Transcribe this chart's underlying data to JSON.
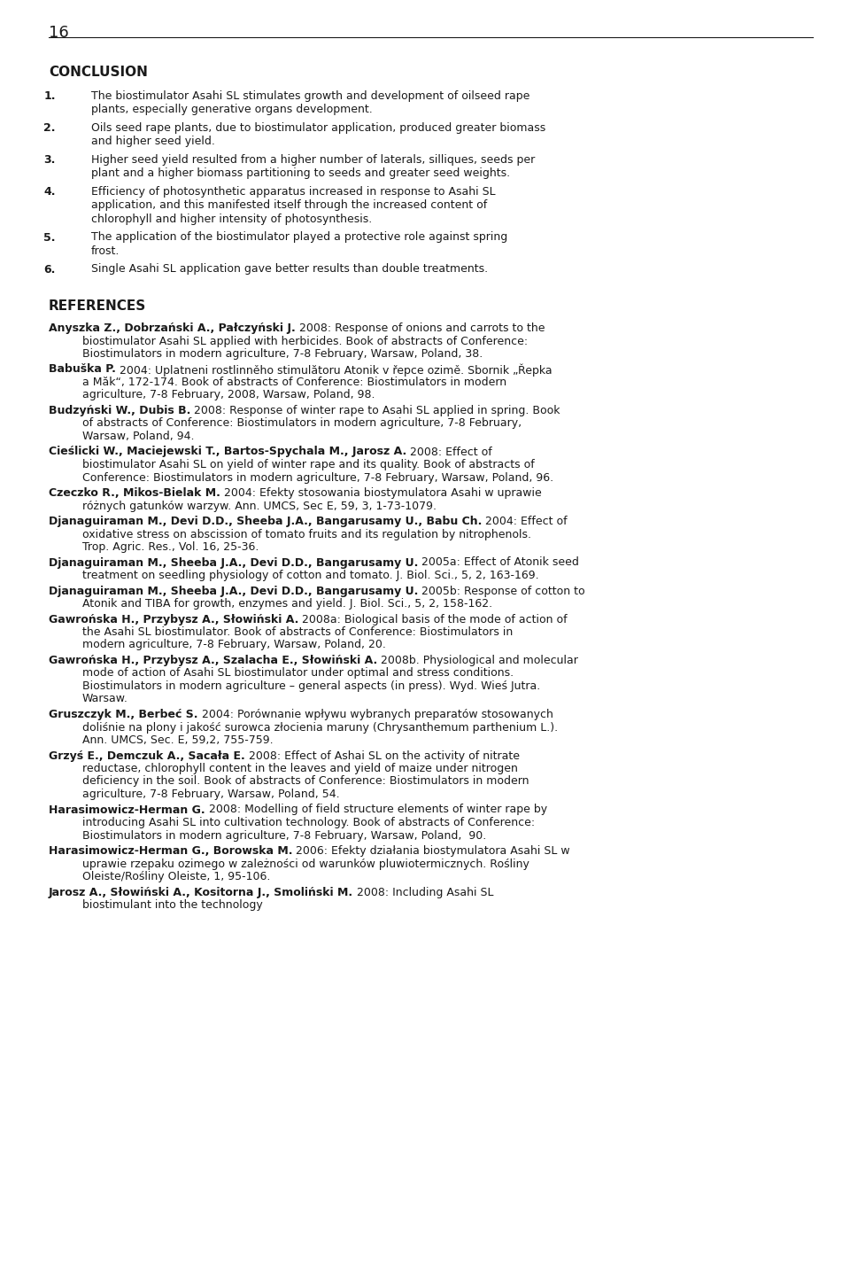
{
  "page_number": "16",
  "background_color": "#ffffff",
  "text_color": "#1a1a1a",
  "page_number_text": "16",
  "conclusion_heading": "CONCLUSION",
  "conclusion_items": [
    {
      "num": "1.",
      "text": "The biostimulator Asahi SL stimulates growth and development of oilseed rape plants, especially generative organs development."
    },
    {
      "num": "2.",
      "text": "Oils seed rape plants, due to biostimulator application, produced greater biomass and higher seed yield."
    },
    {
      "num": "3.",
      "text": "Higher seed yield resulted from a higher number of laterals, silliques, seeds per plant and a higher biomass partitioning to seeds and greater seed weights."
    },
    {
      "num": "4.",
      "text": "Efficiency of photosynthetic apparatus increased in response to Asahi SL application, and this manifested itself through the increased content of chlorophyll and higher intensity of photosynthesis."
    },
    {
      "num": "5.",
      "text": "The application of the biostimulator played a protective role against spring frost."
    },
    {
      "num": "6.",
      "text": "Single Asahi SL application gave better results than double treatments."
    }
  ],
  "references_heading": "REFERENCES",
  "references": [
    {
      "bold": "Anyszka Z., Dobrzański A., Pałczyński J.",
      "normal": " 2008: Response of onions and carrots to the biostimulator Asahi SL applied with herbicides. Book of abstracts of Conference: Biostimulators in modern agriculture, 7-8 February, Warsaw, Poland, 38."
    },
    {
      "bold": "Babuška P.",
      "normal": " 2004: Uplatneni rostlinněho stimulătoru Atonik v řepce ozimě. Sbornik „Řepka a Măk“, 172-174. Book of abstracts of Conference: Biostimulators in modern agriculture, 7-8 February, 2008, Warsaw, Poland, 98."
    },
    {
      "bold": "Budzyński W., Dubis B.",
      "normal": " 2008: Response of winter rape to Asahi SL applied in spring. Book of abstracts of Conference: Biostimulators in modern agriculture, 7-8 February, Warsaw, Poland, 94."
    },
    {
      "bold": "Cieślicki W., Maciejewski T., Bartos-Spychala M., Jarosz A.",
      "normal": " 2008: Effect of biostimulator Asahi SL on yield of winter rape and its quality. Book of abstracts of Conference: Biostimulators in modern agriculture, 7-8 February, Warsaw, Poland, 96."
    },
    {
      "bold": "Czeczko R., Mikos-Bielak M.",
      "normal": " 2004: Efekty stosowania biostymulatora Asahi w uprawie różnych gatunków warzyw. Ann. UMCS, Sec E, 59, 3, 1-73-1079."
    },
    {
      "bold": "Djanaguiraman M., Devi D.D., Sheeba J.A., Bangarusamy U., Babu Ch.",
      "normal": " 2004: Effect of oxidative stress on abscission of tomato fruits and its regulation by nitrophenols. Trop. Agric. Res., Vol. 16, 25-36."
    },
    {
      "bold": "Djanaguiraman M., Sheeba J.A., Devi D.D., Bangarusamy U.",
      "normal": " 2005a: Effect of Atonik seed treatment on seedling physiology of cotton and tomato. J. Biol. Sci., 5, 2, 163-169."
    },
    {
      "bold": "Djanaguiraman M., Sheeba J.A., Devi D.D., Bangarusamy U.",
      "normal": " 2005b: Response of cotton to Atonik and TIBA for growth, enzymes and yield. J. Biol. Sci., 5, 2, 158-162."
    },
    {
      "bold": "Gawrońska H., Przybysz A., Słowiński A.",
      "normal": " 2008a: Biological basis of the mode of action of the Asahi SL biostimulator. Book of abstracts of Conference: Biostimulators in modern agriculture, 7-8 February, Warsaw, Poland, 20."
    },
    {
      "bold": "Gawrońska H., Przybysz A., Szalacha E., Słowiński A.",
      "normal": " 2008b. Physiological and molecular mode of action of Asahi SL biostimulator under optimal and stress conditions. Biostimulators in modern agriculture – general aspects (in press). Wyd. Wieś Jutra. Warsaw."
    },
    {
      "bold": "Gruszczyk M., Berbeć S.",
      "normal": " 2004: Porównanie wpływu wybranych preparatów stosowanych doliśnie na plony i jakość surowca złocienia maruny (Chrysanthemum parthenium L.). Ann. UMCS, Sec. E, 59,2, 755-759."
    },
    {
      "bold": "Grzyś E., Demczuk A., Sacała E.",
      "normal": " 2008: Effect of Ashai SL on the activity of nitrate reductase, chlorophyll content in the leaves and yield of maize under nitrogen deficiency in the soil. Book of abstracts of Conference: Biostimulators in modern agriculture, 7-8 February, Warsaw, Poland, 54."
    },
    {
      "bold": "Harasimowicz-Herman G.",
      "normal": " 2008: Modelling of field structure elements of winter rape by introducing Asahi SL into cultivation technology. Book of abstracts of Conference: Biostimulators in modern agriculture, 7-8 February, Warsaw, Poland,  90."
    },
    {
      "bold": "Harasimowicz-Herman G., Borowska M.",
      "normal": " 2006: Efekty działania biostymulatora Asahi SL w uprawie rzepaku ozimego w zależności od warunków pluwiotermicznych. Rośliny Oleiste/Rośliny Oleiste, 1, 95-106."
    },
    {
      "bold": "Jarosz A., Słowiński A., Kositorna J., Smoliński M.",
      "normal": " 2008: Including Asahi SL biostimulant into the technology"
    }
  ]
}
